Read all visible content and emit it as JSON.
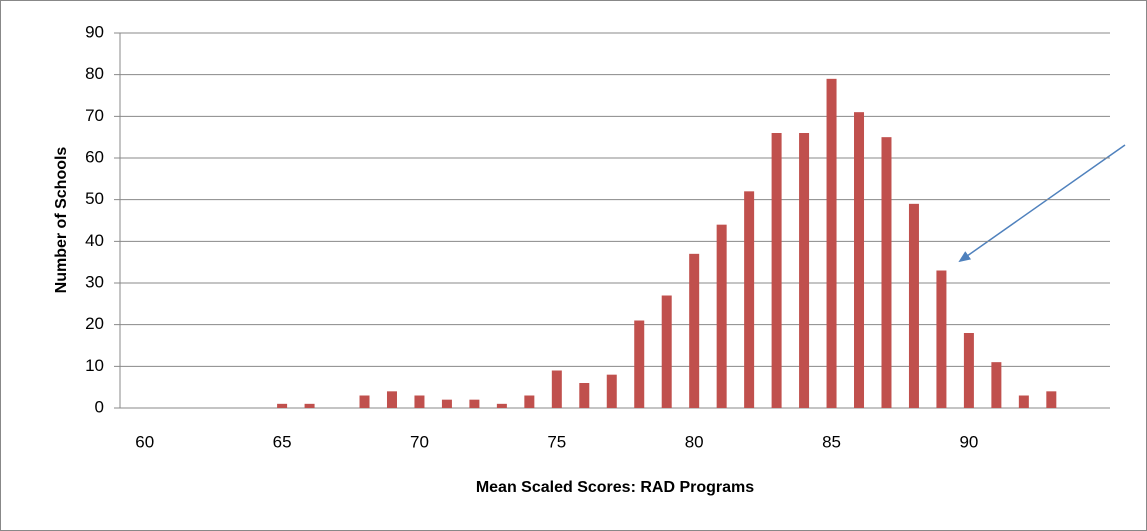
{
  "chart_data": {
    "type": "bar",
    "x_label": "Mean Scaled Scores: RAD Programs",
    "y_label": "Number of Schools",
    "categories": [
      "60",
      null,
      null,
      null,
      null,
      "65",
      null,
      null,
      null,
      null,
      "70",
      null,
      null,
      null,
      null,
      "75",
      null,
      null,
      null,
      null,
      "80",
      null,
      null,
      null,
      null,
      "85",
      null,
      null,
      null,
      null,
      "90",
      null,
      null,
      null,
      null,
      null
    ],
    "values": [
      0,
      0,
      0,
      0,
      0,
      1,
      1,
      0,
      3,
      4,
      3,
      2,
      2,
      1,
      3,
      9,
      6,
      8,
      21,
      27,
      37,
      44,
      52,
      66,
      66,
      79,
      71,
      65,
      49,
      33,
      18,
      11,
      3,
      4,
      0,
      0
    ],
    "color": "#c0504d",
    "ylim": [
      0,
      90
    ],
    "yticks": [
      0,
      10,
      20,
      30,
      40,
      50,
      60,
      70,
      80,
      90
    ],
    "grid": true
  }
}
